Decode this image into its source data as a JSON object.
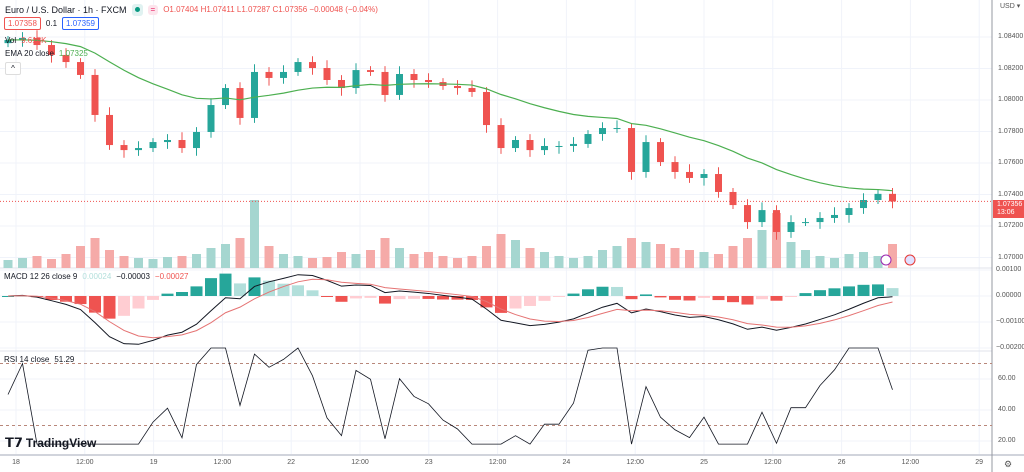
{
  "header": {
    "symbol": "Euro / U.S. Dollar · 1h · FXCM",
    "ohlc": "O1.07404 H1.07411 L1.07287 C1.07356 −0.00048 (−0.04%)",
    "sell_price": "1.07358",
    "spread": "0.1",
    "buy_price": "1.07359",
    "volume_legend": "Vol",
    "volume_value": "9.618K",
    "ema_legend": "EMA 20 close",
    "ema_value": "1.07325",
    "collapse": "^"
  },
  "macd": {
    "legend": "MACD 12 26 close 9",
    "hist": "0.00024",
    "macd": "−0.00003",
    "signal": "−0.00027"
  },
  "rsi": {
    "legend": "RSI 14 close",
    "value": "51.29"
  },
  "price_axis": {
    "currency": "USD ▾",
    "labels": [
      "1.08400",
      "1.08200",
      "1.08000",
      "1.07800",
      "1.07600",
      "1.07400",
      "1.07200",
      "1.07000"
    ],
    "current_price": "1.07356",
    "countdown": "13:06",
    "macd_labels": [
      "0.00100",
      "0.00000",
      "−0.00100",
      "−0.00200"
    ],
    "rsi_labels": [
      "60.00",
      "40.00",
      "20.00"
    ]
  },
  "time_axis": [
    "18",
    "12:00",
    "19",
    "12:00",
    "22",
    "12:00",
    "23",
    "12:00",
    "24",
    "12:00",
    "25",
    "12:00",
    "26",
    "12:00",
    "29"
  ],
  "logo": "TradingView",
  "colors": {
    "up": "#26a69a",
    "down": "#ef5350",
    "ema": "#4caf50",
    "grid": "#f0f3fa"
  },
  "chart_data": {
    "type": "candlestick",
    "closes": [
      1.08381,
      1.08394,
      1.08349,
      1.08286,
      1.08241,
      1.08159,
      1.07905,
      1.07714,
      1.07682,
      1.07695,
      1.07733,
      1.07746,
      1.07695,
      1.07797,
      1.07968,
      1.08076,
      1.07886,
      1.08178,
      1.0814,
      1.08178,
      1.08241,
      1.08203,
      1.08127,
      1.08076,
      1.0819,
      1.08178,
      1.08032,
      1.08165,
      1.08127,
      1.08114,
      1.08089,
      1.08076,
      1.08051,
      1.07841,
      1.07695,
      1.07746,
      1.07682,
      1.07708,
      1.07708,
      1.07721,
      1.07784,
      1.07822,
      1.07822,
      1.07543,
      1.07733,
      1.07606,
      1.07543,
      1.07505,
      1.0753,
      1.07416,
      1.07333,
      1.07225,
      1.07301,
      1.07162,
      1.07225,
      1.07225,
      1.07251,
      1.0727,
      1.07314,
      1.07365,
      1.07404,
      1.07356
    ],
    "volumes": [
      8,
      10,
      12,
      9,
      14,
      22,
      30,
      18,
      12,
      10,
      9,
      11,
      12,
      14,
      20,
      24,
      30,
      68,
      22,
      14,
      12,
      10,
      11,
      16,
      14,
      18,
      30,
      20,
      14,
      16,
      12,
      10,
      12,
      22,
      34,
      28,
      20,
      16,
      12,
      10,
      12,
      18,
      22,
      30,
      26,
      24,
      20,
      18,
      16,
      14,
      22,
      30,
      38,
      55,
      26,
      18,
      12,
      10,
      14,
      16,
      12,
      24
    ],
    "ylim": [
      1.0695,
      1.0855
    ]
  }
}
